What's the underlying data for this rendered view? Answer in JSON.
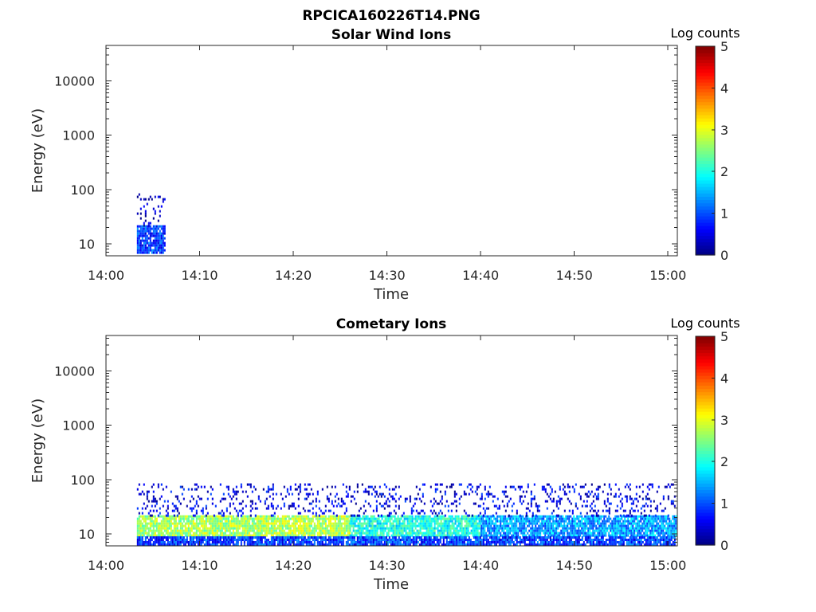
{
  "figure_title": "RPCICA160226T14.PNG",
  "colorbar": {
    "label": "Log counts",
    "ticks": [
      "0",
      "1",
      "2",
      "3",
      "4",
      "5"
    ],
    "range": [
      0,
      5
    ],
    "colormap": "jet"
  },
  "chart_data": [
    {
      "type": "heatmap",
      "title": "Solar Wind Ions",
      "xlabel": "Time",
      "ylabel": "Energy (eV)",
      "x_ticks": [
        "14:00",
        "14:10",
        "14:20",
        "14:30",
        "14:40",
        "14:50",
        "15:00"
      ],
      "xlim_minutes": [
        0,
        61
      ],
      "y_ticks": [
        "10",
        "100",
        "1000",
        "10000"
      ],
      "ylim": [
        6,
        45000
      ],
      "yscale": "log",
      "regions": [
        {
          "t_start_min": 3.3,
          "t_end_min": 6.3,
          "e_low": 7,
          "e_high": 22,
          "log_counts": 0.9
        },
        {
          "t_start_min": 3.3,
          "t_end_min": 6.3,
          "e_low": 22,
          "e_high": 85,
          "log_counts": 0.2,
          "sparse": true
        }
      ]
    },
    {
      "type": "heatmap",
      "title": "Cometary Ions",
      "xlabel": "Time",
      "ylabel": "Energy (eV)",
      "x_ticks": [
        "14:00",
        "14:10",
        "14:20",
        "14:30",
        "14:40",
        "14:50",
        "15:00"
      ],
      "xlim_minutes": [
        0,
        61
      ],
      "y_ticks": [
        "10",
        "100",
        "1000",
        "10000"
      ],
      "ylim": [
        6,
        45000
      ],
      "yscale": "log",
      "regions": [
        {
          "t_start_min": 3.3,
          "t_end_min": 26,
          "e_low": 9,
          "e_high": 22,
          "log_counts": 2.7
        },
        {
          "t_start_min": 26,
          "t_end_min": 40,
          "e_low": 9,
          "e_high": 22,
          "log_counts": 2.0
        },
        {
          "t_start_min": 40,
          "t_end_min": 60.8,
          "e_low": 9,
          "e_high": 22,
          "log_counts": 1.4
        },
        {
          "t_start_min": 3.3,
          "t_end_min": 60.8,
          "e_low": 6,
          "e_high": 9,
          "log_counts": 0.9
        },
        {
          "t_start_min": 3.3,
          "t_end_min": 60.8,
          "e_low": 22,
          "e_high": 85,
          "log_counts": 0.5,
          "sparse": true
        }
      ]
    }
  ]
}
